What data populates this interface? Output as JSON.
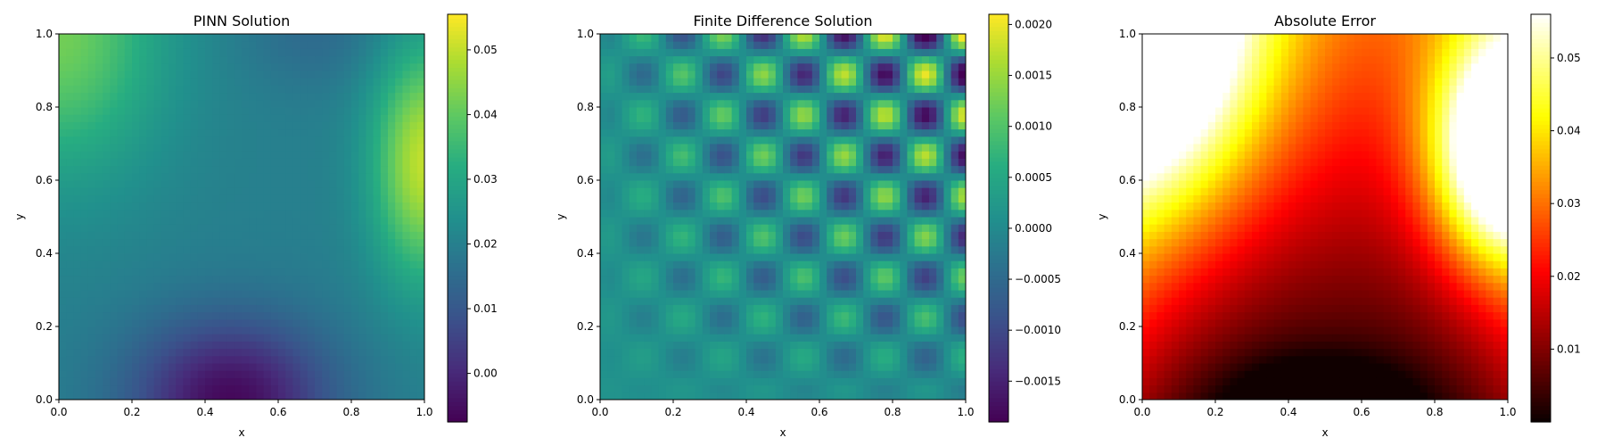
{
  "chart_data": [
    {
      "type": "heatmap",
      "title": "PINN Solution",
      "xlabel": "x",
      "ylabel": "y",
      "xlim": [
        0,
        1
      ],
      "ylim": [
        0,
        1
      ],
      "x_ticks": [
        "0.0",
        "0.2",
        "0.4",
        "0.6",
        "0.8",
        "1.0"
      ],
      "y_ticks": [
        "0.0",
        "0.2",
        "0.4",
        "0.6",
        "0.8",
        "1.0"
      ],
      "colormap": "viridis",
      "colorbar": {
        "min": -0.0075,
        "max": 0.0555,
        "ticks": [
          0.0,
          0.01,
          0.02,
          0.03,
          0.04,
          0.05
        ],
        "tick_labels": [
          "0.00",
          "0.01",
          "0.02",
          "0.03",
          "0.04",
          "0.05"
        ]
      },
      "field_description": "low (~-0.007) at bottom center near x=0.5, y=0; high (~0.05) at right edge near y=0.65 and at top-left corner; ~0.02 elsewhere"
    },
    {
      "type": "heatmap",
      "title": "Finite Difference Solution",
      "xlabel": "x",
      "ylabel": "y",
      "xlim": [
        0,
        1
      ],
      "ylim": [
        0,
        1
      ],
      "x_ticks": [
        "0.0",
        "0.2",
        "0.4",
        "0.6",
        "0.8",
        "1.0"
      ],
      "y_ticks": [
        "0.0",
        "0.2",
        "0.4",
        "0.6",
        "0.8",
        "1.0"
      ],
      "colormap": "viridis",
      "colorbar": {
        "min": -0.0019,
        "max": 0.0021,
        "ticks": [
          -0.0015,
          -0.001,
          -0.0005,
          0.0,
          0.0005,
          0.001,
          0.0015,
          0.002
        ],
        "tick_labels": [
          "−0.0015",
          "−0.0010",
          "−0.0005",
          "0.0000",
          "0.0005",
          "0.0010",
          "0.0015",
          "0.0020"
        ]
      },
      "field_description": "checkerboard oscillation pattern, amplitude growing toward top-right; peaks ~0.002 near (0.84, 0.84), troughs ~-0.0018 near (0.73, 0.95)"
    },
    {
      "type": "heatmap",
      "title": "Absolute Error",
      "xlabel": "x",
      "ylabel": "y",
      "xlim": [
        0,
        1
      ],
      "ylim": [
        0,
        1
      ],
      "x_ticks": [
        "0.0",
        "0.2",
        "0.4",
        "0.6",
        "0.8",
        "1.0"
      ],
      "y_ticks": [
        "0.0",
        "0.2",
        "0.4",
        "0.6",
        "0.8",
        "1.0"
      ],
      "colormap": "hot",
      "colorbar": {
        "min": 0.0,
        "max": 0.056,
        "ticks": [
          0.01,
          0.02,
          0.03,
          0.04,
          0.05
        ],
        "tick_labels": [
          "0.01",
          "0.02",
          "0.03",
          "0.04",
          "0.05"
        ]
      },
      "field_description": "near zero (black) at bottom center; bright white/yellow at top-left corner and right edge near y=0.7"
    }
  ]
}
